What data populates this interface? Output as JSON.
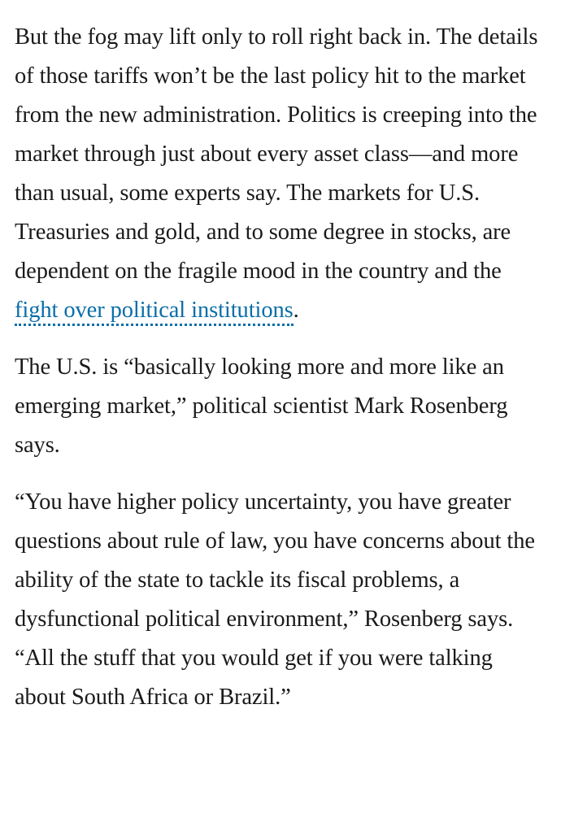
{
  "article": {
    "paragraphs": [
      {
        "before": "But the fog may lift only to roll right back in. The details of those tariffs won’t be the last policy hit to the market from the new administration. Politics is creeping into the market through just about every asset class—and more than usual, some experts say. The markets for U.S. Treasuries and gold, and to some degree in stocks, are dependent on the fragile mood in the country and the ",
        "link_text": "fight over political institutions",
        "after": "."
      },
      {
        "text": "The U.S. is “basically looking more and more like an emerging market,” political scientist Mark Rosenberg says."
      },
      {
        "text": "“You have higher policy uncertainty, you have greater questions about rule of law, you have concerns about the ability of the state to tackle its fiscal problems, a dysfunctional political environment,” Rosenberg says. “All the stuff that you would get if you were talking about South Africa or Brazil.”"
      }
    ]
  }
}
